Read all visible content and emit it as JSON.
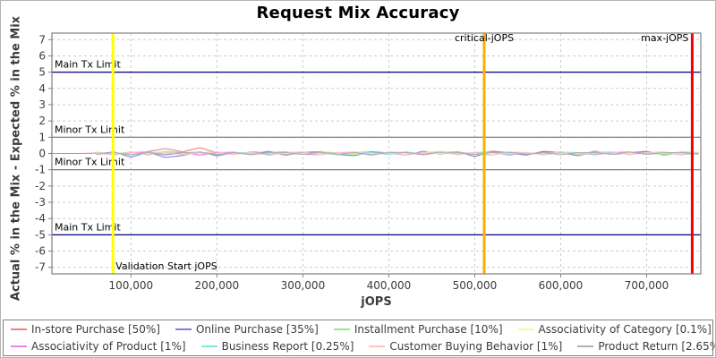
{
  "chart_data": {
    "type": "line",
    "title": "Request Mix Accuracy",
    "xlabel": "jOPS",
    "ylabel": "Actual % in the Mix - Expected % in the Mix",
    "xlim": [
      8000,
      763000
    ],
    "ylim": [
      -7.4,
      7.4
    ],
    "grid": true,
    "legend_position": "bottom",
    "colors": {
      "frame": "#808080",
      "gridline": "#cccccc",
      "main_tx_limit_line": "#000080",
      "minor_tx_limit_line": "#707070",
      "validation_line": "#ffff00",
      "critical_line": "#ffae00",
      "max_line": "#f00000"
    },
    "x_ticks": [
      100000,
      200000,
      300000,
      400000,
      500000,
      600000,
      700000
    ],
    "x_tick_labels": [
      "100,000",
      "200,000",
      "300,000",
      "400,000",
      "500,000",
      "600,000",
      "700,000"
    ],
    "y_ticks": [
      7,
      6,
      5,
      4,
      3,
      2,
      1,
      0,
      -1,
      -2,
      -3,
      -4,
      -5,
      -6,
      -7
    ],
    "reference_lines_horizontal": [
      {
        "label": "Main Tx Limit",
        "value": 5,
        "color": "#000080"
      },
      {
        "label": "Minor Tx Limit",
        "value": 1,
        "color": "#707070"
      },
      {
        "label": "Minor Tx Limit",
        "value": -1,
        "color": "#707070"
      },
      {
        "label": "Main Tx Limit",
        "value": -5,
        "color": "#000080"
      }
    ],
    "reference_lines_vertical": [
      {
        "label": "Validation Start jOPS",
        "value": 79000,
        "color": "#ffff00",
        "label_pos": "bottom-right"
      },
      {
        "label": "critical-jOPS",
        "value": 511000,
        "color": "#ffae00",
        "label_pos": "top-center"
      },
      {
        "label": "max-jOPS",
        "value": 753000,
        "color": "#f00000",
        "label_pos": "top-left"
      }
    ],
    "x": [
      8000,
      40000,
      60000,
      80000,
      100000,
      120000,
      140000,
      160000,
      180000,
      200000,
      220000,
      240000,
      260000,
      280000,
      300000,
      320000,
      340000,
      360000,
      380000,
      400000,
      420000,
      440000,
      460000,
      480000,
      500000,
      520000,
      540000,
      560000,
      580000,
      600000,
      620000,
      640000,
      660000,
      680000,
      700000,
      720000,
      740000,
      760000
    ],
    "series": [
      {
        "name": "In-store Purchase [50%]",
        "color": "#f08080",
        "values": [
          0,
          0,
          0.02,
          0.05,
          -0.08,
          0.12,
          0.3,
          0.1,
          0.35,
          0.05,
          -0.06,
          0.1,
          0.04,
          -0.08,
          0.06,
          0.12,
          -0.05,
          0.05,
          0.1,
          -0.04,
          0.06,
          -0.08,
          0.05,
          0.1,
          -0.05,
          0.15,
          0.05,
          -0.04,
          0.1,
          0.05,
          -0.12,
          0.15,
          -0.05,
          0.05,
          0.1,
          -0.04,
          0.08,
          0.05
        ]
      },
      {
        "name": "Online Purchase [35%]",
        "color": "#7e7ee4",
        "values": [
          null,
          null,
          -0.05,
          0.1,
          -0.22,
          0.08,
          -0.25,
          -0.12,
          0.1,
          -0.15,
          0.06,
          -0.05,
          0.14,
          -0.1,
          0.05,
          0.1,
          -0.06,
          -0.14,
          0.1,
          0.04,
          -0.1,
          0.14,
          -0.05,
          0.1,
          -0.18,
          0.1,
          0.04,
          -0.1,
          0.14,
          0.05,
          -0.14,
          0.1,
          -0.05,
          0.04,
          0.14,
          -0.1,
          0.05,
          -0.04
        ]
      },
      {
        "name": "Installment Purchase [10%]",
        "color": "#90ee90",
        "values": [
          null,
          null,
          0.08,
          -0.04,
          0.1,
          -0.1,
          0.14,
          0.05,
          -0.1,
          0.1,
          -0.04,
          0.08,
          -0.1,
          0.05,
          -0.05,
          0.1,
          0.04,
          -0.08,
          0.05,
          -0.04,
          0.1,
          -0.05,
          0.04,
          0.08,
          -0.05,
          -0.1,
          0.08,
          0.04,
          -0.05,
          0.1,
          -0.08,
          0.04,
          0.08,
          -0.05,
          0.05,
          -0.08,
          0.04,
          0.06
        ]
      },
      {
        "name": "Associativity of Category [0.1%]",
        "color": "#fafa96",
        "values": [
          null,
          null,
          0.02,
          -0.02,
          0.03,
          -0.01,
          0.02,
          -0.03,
          0.01,
          0.02,
          -0.02,
          0.01,
          0.03,
          -0.02,
          0.01,
          -0.01,
          0.02,
          -0.02,
          0.03,
          -0.01,
          0.01,
          0.02,
          -0.02,
          0.01,
          -0.03,
          0.02,
          -0.01,
          0.01,
          0.02,
          -0.02,
          0.01,
          0.03,
          -0.01,
          0.02,
          -0.02,
          0.01,
          -0.01,
          0.02
        ]
      },
      {
        "name": "Associativity of Product [1%]",
        "color": "#ee82ee",
        "values": [
          null,
          null,
          0.05,
          -0.08,
          0.06,
          0.1,
          -0.06,
          0.08,
          -0.1,
          0.05,
          0.08,
          -0.06,
          0.05,
          0.1,
          -0.05,
          -0.08,
          0.06,
          0.05,
          -0.1,
          0.08,
          0.05,
          -0.06,
          0.1,
          -0.05,
          0.06,
          0.08,
          -0.1,
          0.05,
          -0.06,
          0.08,
          0.05,
          -0.08,
          0.06,
          0.1,
          -0.05,
          0.06,
          -0.08,
          0.05
        ]
      },
      {
        "name": "Business Report [0.25%]",
        "color": "#7fe5e0",
        "values": [
          null,
          null,
          -0.04,
          0.06,
          -0.08,
          0.05,
          0.08,
          -0.06,
          0.05,
          -0.08,
          0.04,
          0.06,
          -0.05,
          0.08,
          -0.06,
          0.04,
          -0.08,
          0.06,
          0.05,
          -0.06,
          0.08,
          -0.04,
          0.05,
          -0.06,
          0.04,
          0.08,
          -0.05,
          0.06,
          -0.08,
          0.04,
          0.06,
          -0.05,
          0.08,
          -0.06,
          0.04,
          0.05,
          -0.06,
          0.04
        ]
      },
      {
        "name": "Customer Buying Behavior [1%]",
        "color": "#ffc4be",
        "values": [
          null,
          null,
          0.06,
          -0.1,
          0.08,
          -0.06,
          0.12,
          -0.08,
          0.06,
          0.1,
          -0.06,
          0.08,
          -0.12,
          0.06,
          0.1,
          -0.08,
          0.05,
          0.1,
          -0.06,
          0.08,
          -0.1,
          0.06,
          0.12,
          -0.08,
          0.05,
          -0.1,
          0.08,
          0.06,
          -0.08,
          0.12,
          -0.06,
          0.08,
          0.1,
          -0.08,
          0.06,
          0.1,
          -0.06,
          0.08
        ]
      },
      {
        "name": "Product Return [2.65%]",
        "color": "#b0b0b0",
        "values": [
          null,
          null,
          -0.06,
          0.05,
          -0.08,
          0.06,
          -0.1,
          0.05,
          0.08,
          -0.06,
          0.05,
          -0.08,
          0.06,
          0.05,
          -0.06,
          0.08,
          -0.05,
          0.06,
          -0.08,
          0.05,
          0.06,
          -0.05,
          0.08,
          0.06,
          -0.06,
          0.05,
          0.08,
          -0.05,
          0.06,
          -0.08,
          0.05,
          0.06,
          -0.05,
          0.08,
          -0.06,
          0.05,
          0.06,
          -0.05
        ]
      }
    ]
  }
}
